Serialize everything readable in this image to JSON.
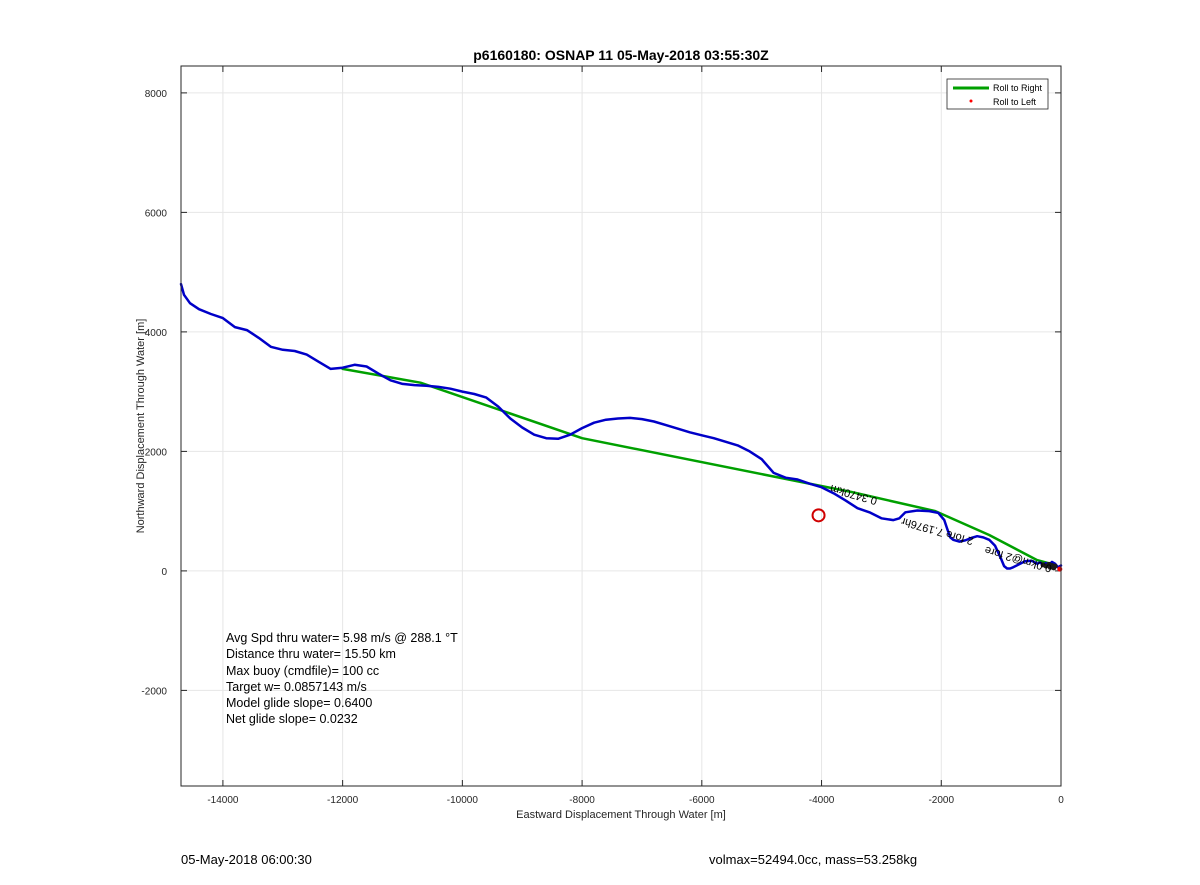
{
  "chart_data": {
    "type": "line",
    "title": "p6160180: OSNAP 11 05-May-2018 03:55:30Z",
    "xlabel": "Eastward Displacement Through Water [m]",
    "ylabel": "Northward Displacement Through Water [m]",
    "xlim": [
      -14700,
      0
    ],
    "ylim": [
      -3600,
      8450
    ],
    "grid": true,
    "x_ticks": [
      -14000,
      -12000,
      -10000,
      -8000,
      -6000,
      -4000,
      -2000,
      0
    ],
    "y_ticks": [
      -2000,
      0,
      2000,
      4000,
      6000,
      8000
    ],
    "legend": {
      "placement": "top-right",
      "entries": [
        {
          "label": "Roll to Right",
          "color": "#00a000",
          "marker": "line"
        },
        {
          "label": "Roll to Left",
          "color": "#ff0000",
          "marker": "dot"
        }
      ]
    },
    "series": [
      {
        "name": "Roll to Right",
        "color": "#00a000",
        "x": [
          -12000,
          -10700,
          -8000,
          -4300,
          -3500,
          -2100,
          -1200,
          -400,
          -100
        ],
        "y": [
          3380,
          3150,
          2220,
          1480,
          1320,
          1000,
          600,
          180,
          100
        ]
      },
      {
        "color": "#0000c8",
        "x": [
          -14700,
          -14650,
          -14550,
          -14400,
          -14200,
          -14000,
          -13800,
          -13600,
          -13400,
          -13200,
          -13000,
          -12800,
          -12600,
          -12400,
          -12200,
          -12000,
          -11800,
          -11600,
          -11400,
          -11200,
          -11000,
          -10800,
          -10600,
          -10400,
          -10200,
          -10000,
          -9800,
          -9600,
          -9400,
          -9200,
          -9000,
          -8800,
          -8600,
          -8400,
          -8200,
          -8000,
          -7800,
          -7600,
          -7400,
          -7200,
          -7000,
          -6800,
          -6600,
          -6400,
          -6200,
          -6000,
          -5800,
          -5600,
          -5400,
          -5200,
          -5000,
          -4800,
          -4600,
          -4400,
          -4200,
          -4000,
          -3800,
          -3600,
          -3400,
          -3200,
          -3000,
          -2800,
          -2700,
          -2600,
          -2400,
          -2200,
          -2050,
          -1950,
          -1900,
          -1850,
          -1800,
          -1700,
          -1600,
          -1500,
          -1400,
          -1300,
          -1200,
          -1100,
          -1000,
          -950,
          -900,
          -850,
          -800,
          -700,
          -600,
          -500,
          -450,
          -400,
          -350,
          -300,
          -250,
          -200,
          -150,
          -100,
          -50,
          0
        ],
        "y": [
          4800,
          4620,
          4480,
          4380,
          4300,
          4230,
          4080,
          4030,
          3900,
          3750,
          3700,
          3680,
          3620,
          3500,
          3380,
          3400,
          3450,
          3420,
          3300,
          3190,
          3130,
          3110,
          3100,
          3080,
          3050,
          3000,
          2960,
          2900,
          2750,
          2550,
          2400,
          2280,
          2220,
          2210,
          2280,
          2390,
          2480,
          2530,
          2550,
          2560,
          2540,
          2500,
          2440,
          2380,
          2320,
          2270,
          2220,
          2160,
          2100,
          2000,
          1870,
          1640,
          1560,
          1530,
          1460,
          1400,
          1300,
          1180,
          1050,
          980,
          880,
          850,
          880,
          980,
          1010,
          1000,
          970,
          850,
          700,
          560,
          520,
          490,
          510,
          550,
          580,
          560,
          520,
          420,
          200,
          80,
          40,
          40,
          60,
          110,
          160,
          170,
          150,
          120,
          140,
          110,
          130,
          100,
          150,
          120,
          60,
          90
        ]
      },
      {
        "color": "#ff0000",
        "x": [
          -40,
          -20
        ],
        "y": [
          50,
          20
        ]
      }
    ],
    "annotations": [
      {
        "text": "0.3470km",
        "x": -3450,
        "y": 1330,
        "rotation": 196
      },
      {
        "text": "2 fore 7.1976hr",
        "x": -2050,
        "y": 720,
        "rotation": 196
      },
      {
        "text": "0.0km@2 fore",
        "x": -700,
        "y": 250,
        "rotation": 196
      }
    ],
    "circle_marker": {
      "x": -4050,
      "y": 930,
      "color": "#d00000"
    }
  },
  "stats": {
    "line1": "Avg Spd thru water=  5.98 m/s @ 288.1 °T",
    "line2": "Distance thru water= 15.50 km",
    "line3": "Max buoy (cmdfile)= 100 cc",
    "line4": "Target w= 0.0857143 m/s",
    "line5": "Model glide slope= 0.6400",
    "line6": "Net glide slope= 0.0232"
  },
  "footer": {
    "left": "05-May-2018 06:00:30",
    "right": "volmax=52494.0cc, mass=53.258kg"
  }
}
